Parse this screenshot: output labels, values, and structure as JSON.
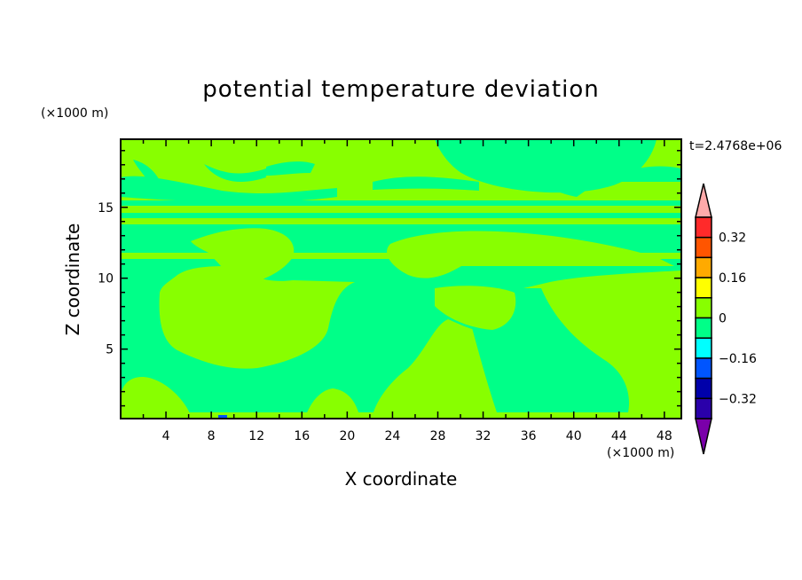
{
  "chart_data": {
    "type": "heatmap",
    "subtype": "filled-contour",
    "title": "potential temperature deviation",
    "xlabel": "X coordinate",
    "ylabel": "Z coordinate",
    "x_unit_label": "(×1000 m)",
    "y_unit_label": "(×1000 m)",
    "time_label": "t=2.4768e+06",
    "xlim": [
      0,
      49.5
    ],
    "ylim": [
      0.1,
      19.8
    ],
    "x_ticks": [
      4,
      8,
      12,
      16,
      20,
      24,
      28,
      32,
      36,
      40,
      44,
      48
    ],
    "y_ticks": [
      5,
      10,
      15
    ],
    "colorbar": {
      "levels": [
        -0.4,
        -0.32,
        -0.24,
        -0.16,
        -0.08,
        0,
        0.08,
        0.16,
        0.24,
        0.32,
        0.4
      ],
      "tick_labels": [
        "0.32",
        "0.16",
        "0",
        "−0.16",
        "−0.32"
      ],
      "colors_top_to_bottom": [
        "#ff2a2a",
        "#ff5500",
        "#ffaa00",
        "#ffff00",
        "#88ff00",
        "#00ff88",
        "#00ffff",
        "#0055ff",
        "#0000aa",
        "#2a00aa"
      ],
      "over_color": "#ffaaaa",
      "under_color": "#7a00aa",
      "extend": "both"
    },
    "dominant_ranges": [
      {
        "range": "0 to 0.08",
        "color": "#88ff00"
      },
      {
        "range": "-0.08 to 0",
        "color": "#00ff88"
      }
    ]
  }
}
